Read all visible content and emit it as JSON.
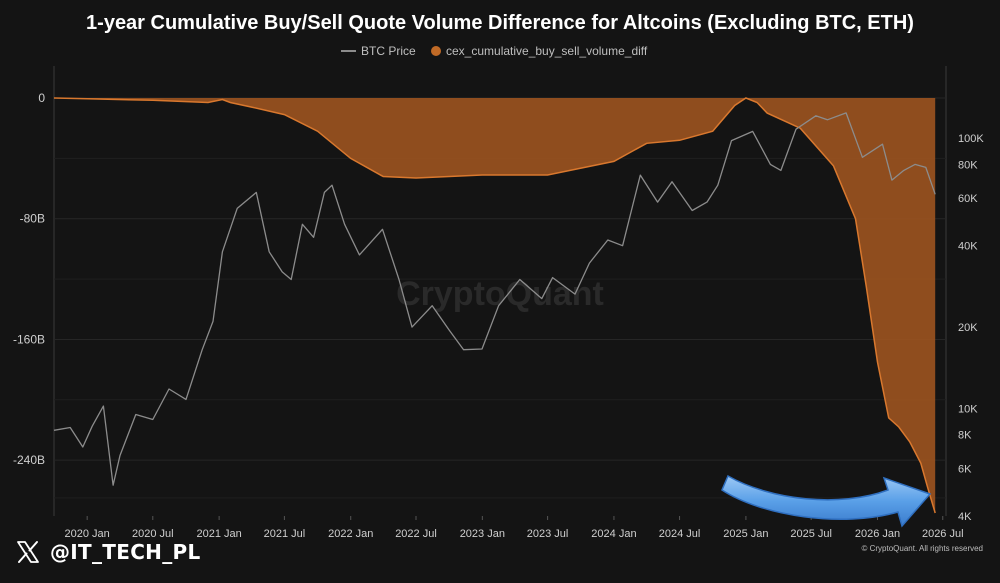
{
  "chart_data": {
    "type": "area",
    "title": "1-year Cumulative Buy/Sell Quote Volume Difference for Altcoins (Excluding BTC, ETH)",
    "legend": {
      "placement": "top-center",
      "entries": [
        {
          "name": "BTC Price",
          "color": "#8c8c8c",
          "marker": "line"
        },
        {
          "name": "cex_cumulative_buy_sell_volume_diff",
          "color": "#c06a26",
          "marker": "dot"
        }
      ]
    },
    "x_ticks": [
      "2020 Jan",
      "2020 Jul",
      "2021 Jan",
      "2021 Jul",
      "2022 Jan",
      "2022 Jul",
      "2023 Jan",
      "2023 Jul",
      "2024 Jan",
      "2024 Jul",
      "2025 Jan",
      "2025 Jul",
      "2026 Jan",
      "2026 Jul"
    ],
    "x_range": [
      "2019-10-01",
      "2026-07-10"
    ],
    "left_axis": {
      "ticks": [
        "0",
        "-80B",
        "-160B",
        "-240B"
      ],
      "tick_values": [
        0,
        -80,
        -160,
        -240
      ],
      "range": [
        -277,
        0
      ],
      "unit": "B"
    },
    "right_axis": {
      "scale": "log",
      "ticks": [
        "100K",
        "80K",
        "60K",
        "40K",
        "20K",
        "10K",
        "8K",
        "6K",
        "4K"
      ],
      "tick_values": [
        100000,
        80000,
        60000,
        40000,
        20000,
        10000,
        8000,
        6000,
        4000
      ],
      "range": [
        4000,
        125000
      ]
    },
    "grid": true,
    "series": [
      {
        "name": "cex_cumulative_buy_sell_volume_diff",
        "axis": "left",
        "style": "area",
        "color": "#c06a26",
        "points": [
          [
            "2019-10-01",
            0
          ],
          [
            "2020-01-01",
            -0.5
          ],
          [
            "2020-07-01",
            -1.5
          ],
          [
            "2020-12-01",
            -3
          ],
          [
            "2021-01-10",
            -1
          ],
          [
            "2021-02-01",
            -3
          ],
          [
            "2021-04-01",
            -6
          ],
          [
            "2021-07-01",
            -11
          ],
          [
            "2021-10-01",
            -22
          ],
          [
            "2022-01-01",
            -40
          ],
          [
            "2022-04-01",
            -52
          ],
          [
            "2022-07-01",
            -53
          ],
          [
            "2022-10-01",
            -52
          ],
          [
            "2023-01-01",
            -51
          ],
          [
            "2023-07-01",
            -51
          ],
          [
            "2024-01-01",
            -42
          ],
          [
            "2024-04-01",
            -30
          ],
          [
            "2024-07-01",
            -28
          ],
          [
            "2024-10-01",
            -22
          ],
          [
            "2024-12-01",
            -5
          ],
          [
            "2025-01-01",
            0
          ],
          [
            "2025-02-01",
            -3
          ],
          [
            "2025-03-01",
            -10
          ],
          [
            "2025-06-01",
            -20
          ],
          [
            "2025-09-01",
            -45
          ],
          [
            "2025-11-01",
            -80
          ],
          [
            "2025-12-01",
            -125
          ],
          [
            "2026-01-01",
            -175
          ],
          [
            "2026-02-01",
            -212
          ],
          [
            "2026-03-01",
            -218
          ],
          [
            "2026-04-01",
            -228
          ],
          [
            "2026-05-01",
            -242
          ],
          [
            "2026-05-20",
            -258
          ],
          [
            "2026-06-10",
            -275
          ]
        ]
      },
      {
        "name": "BTC Price",
        "axis": "right",
        "style": "line",
        "color": "#8c8c8c",
        "points": [
          [
            "2019-10-01",
            8300
          ],
          [
            "2019-11-15",
            8500
          ],
          [
            "2019-12-20",
            7200
          ],
          [
            "2020-01-15",
            8600
          ],
          [
            "2020-02-15",
            10200
          ],
          [
            "2020-03-13",
            5200
          ],
          [
            "2020-04-01",
            6700
          ],
          [
            "2020-05-15",
            9500
          ],
          [
            "2020-07-01",
            9100
          ],
          [
            "2020-08-15",
            11800
          ],
          [
            "2020-10-01",
            10800
          ],
          [
            "2020-11-15",
            16500
          ],
          [
            "2020-12-15",
            21000
          ],
          [
            "2021-01-10",
            38000
          ],
          [
            "2021-02-20",
            55000
          ],
          [
            "2021-04-14",
            63000
          ],
          [
            "2021-05-20",
            38000
          ],
          [
            "2021-06-25",
            32000
          ],
          [
            "2021-07-20",
            30000
          ],
          [
            "2021-08-20",
            48000
          ],
          [
            "2021-09-20",
            43000
          ],
          [
            "2021-10-20",
            63000
          ],
          [
            "2021-11-10",
            67000
          ],
          [
            "2021-12-15",
            48000
          ],
          [
            "2022-01-25",
            37000
          ],
          [
            "2022-03-30",
            46000
          ],
          [
            "2022-05-15",
            30000
          ],
          [
            "2022-06-20",
            20000
          ],
          [
            "2022-08-15",
            24000
          ],
          [
            "2022-10-01",
            19500
          ],
          [
            "2022-11-10",
            16500
          ],
          [
            "2022-12-31",
            16600
          ],
          [
            "2023-02-15",
            24000
          ],
          [
            "2023-04-15",
            30000
          ],
          [
            "2023-06-15",
            25500
          ],
          [
            "2023-07-15",
            30500
          ],
          [
            "2023-09-15",
            26500
          ],
          [
            "2023-10-25",
            34500
          ],
          [
            "2023-12-15",
            42000
          ],
          [
            "2024-01-25",
            40000
          ],
          [
            "2024-03-14",
            73000
          ],
          [
            "2024-05-01",
            58000
          ],
          [
            "2024-06-10",
            69000
          ],
          [
            "2024-08-05",
            54000
          ],
          [
            "2024-09-15",
            58000
          ],
          [
            "2024-10-15",
            67000
          ],
          [
            "2024-11-22",
            98000
          ],
          [
            "2025-01-20",
            106000
          ],
          [
            "2025-03-10",
            80000
          ],
          [
            "2025-04-08",
            76000
          ],
          [
            "2025-05-20",
            108000
          ],
          [
            "2025-07-14",
            121000
          ],
          [
            "2025-08-15",
            117000
          ],
          [
            "2025-10-06",
            124000
          ],
          [
            "2025-11-20",
            85000
          ],
          [
            "2026-01-15",
            95000
          ],
          [
            "2026-02-10",
            70000
          ],
          [
            "2026-03-15",
            76000
          ],
          [
            "2026-04-15",
            80000
          ],
          [
            "2026-05-15",
            78000
          ],
          [
            "2026-06-10",
            62000
          ]
        ]
      }
    ]
  },
  "watermark": "CryptoQuant",
  "copyright": "© CryptoQuant. All rights reserved",
  "handle": "@IT_TECH_PL",
  "annotation": {
    "type": "curved-arrow",
    "color": "#5aa0e8",
    "direction": "right-pointing"
  }
}
